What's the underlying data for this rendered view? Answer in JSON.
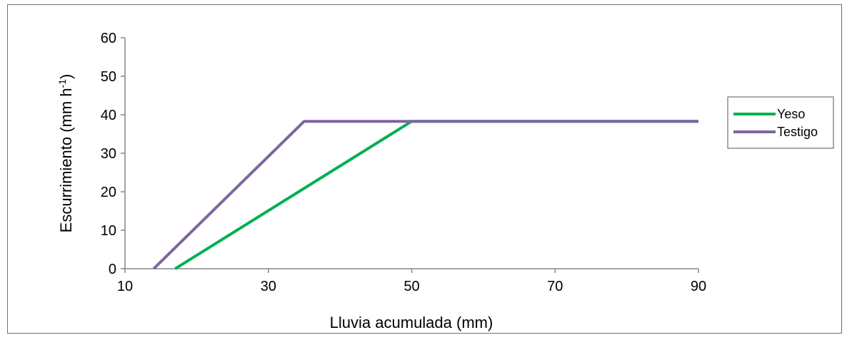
{
  "chart_data": {
    "type": "line",
    "title": "",
    "xlabel": "Lluvia acumulada (mm)",
    "ylabel_main": "Escurrimiento (mm h",
    "ylabel_sup": "-1",
    "ylabel_close": ")",
    "xlim": [
      10,
      90
    ],
    "ylim": [
      0,
      60
    ],
    "xticks": [
      "10",
      "30",
      "50",
      "70",
      "90"
    ],
    "yticks": [
      "0",
      "10",
      "20",
      "30",
      "40",
      "50",
      "60"
    ],
    "grid": false,
    "legend_position": "right",
    "series": [
      {
        "name": "Yeso",
        "color": "#00b050",
        "x": [
          17,
          50,
          90
        ],
        "y": [
          0,
          38.3,
          38.3
        ]
      },
      {
        "name": "Testigo",
        "color": "#8064a2",
        "x": [
          14,
          35,
          90
        ],
        "y": [
          0,
          38.3,
          38.3
        ]
      }
    ]
  }
}
